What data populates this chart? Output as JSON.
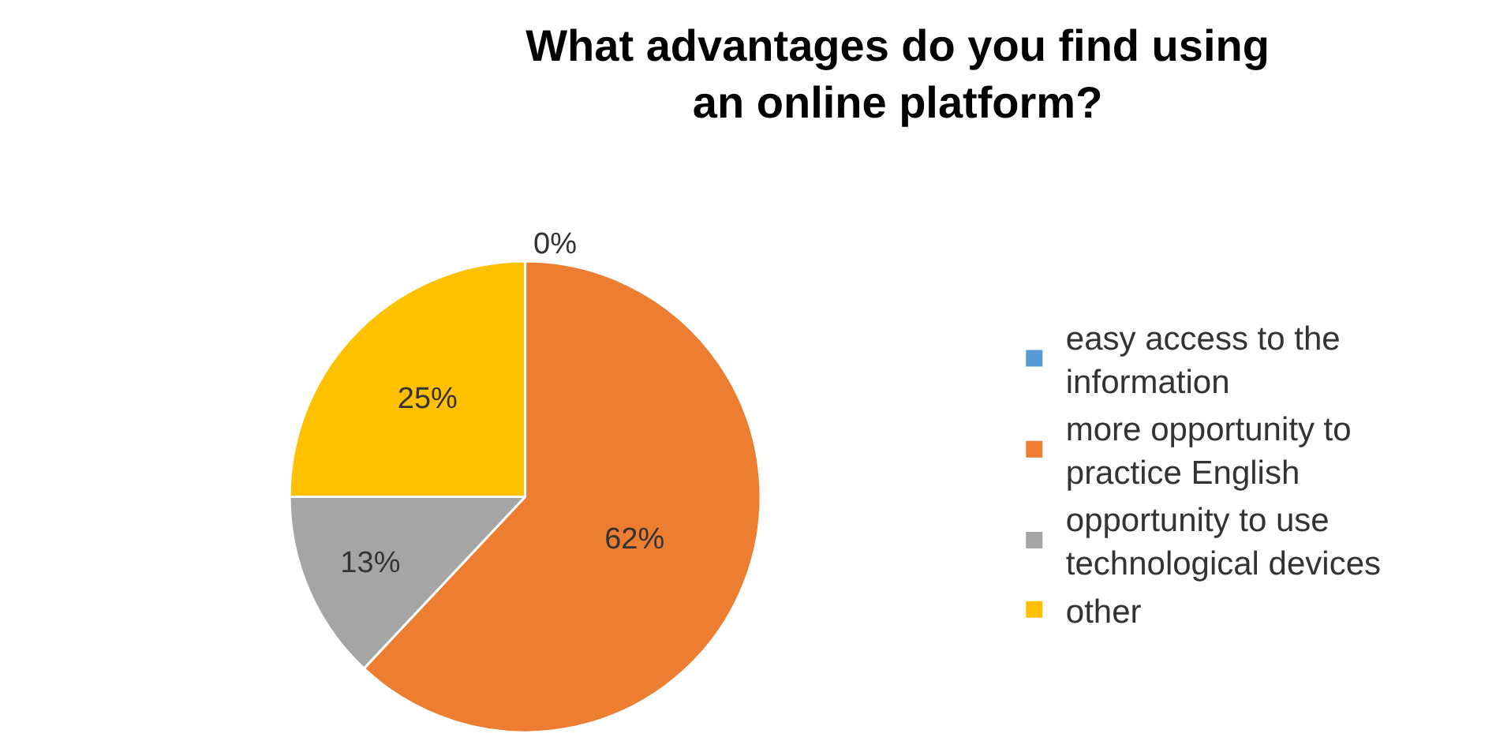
{
  "chart_data": {
    "type": "pie",
    "title": "What advantages do you find using an online platform?",
    "categories": [
      "easy access to the information",
      "more opportunity to practice English",
      "opportunity to use technological devices",
      "other"
    ],
    "values": [
      0,
      62,
      13,
      25
    ],
    "colors": [
      "#5b9bd5",
      "#ed7d31",
      "#a5a5a5",
      "#ffc000"
    ],
    "value_labels": [
      "0%",
      "62%",
      "13%",
      "25%"
    ],
    "legend": "right"
  }
}
